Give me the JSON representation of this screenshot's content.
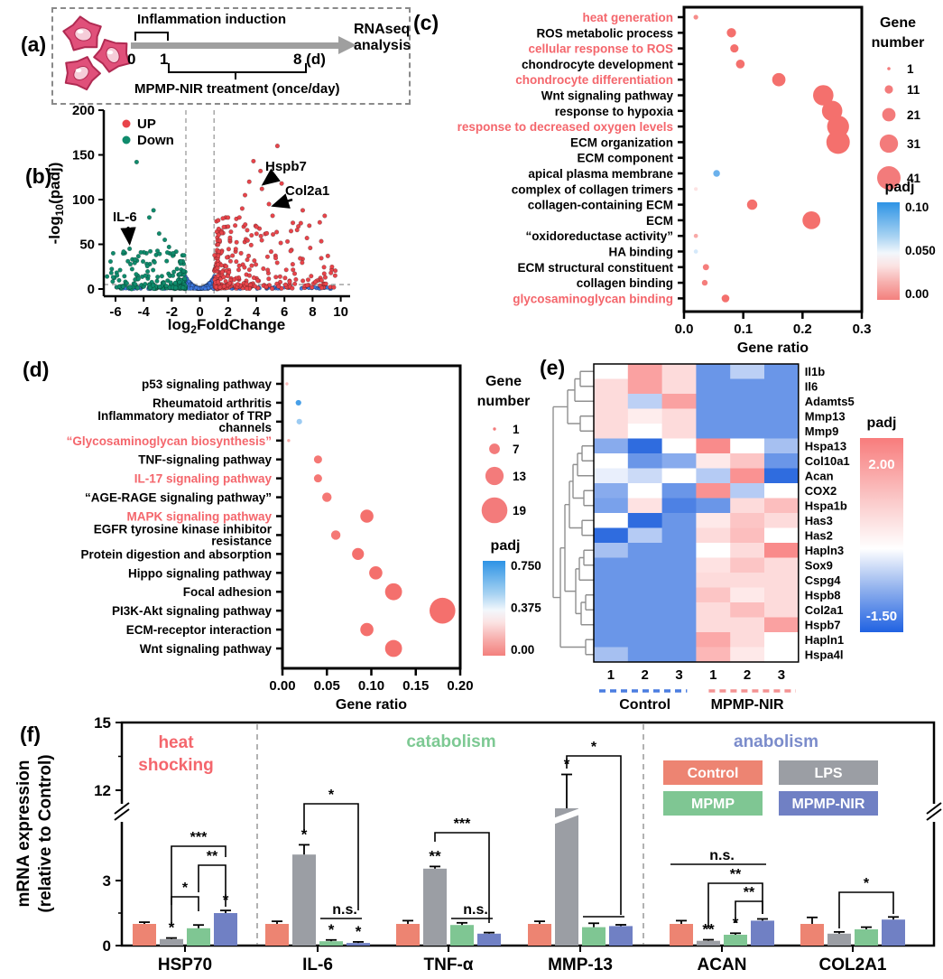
{
  "panels": {
    "a": "(a)",
    "b": "(b)",
    "c": "(c)",
    "d": "(d)",
    "e": "(e)",
    "f": "(f)"
  },
  "panel_a": {
    "induction": "Inflammation induction",
    "t0": "0",
    "t1": "1",
    "t8": "8 (d)",
    "treatment": "MPMP-NIR treatment (once/day)",
    "rnaseq_line1": "RNAseq",
    "rnaseq_line2": "analysis"
  },
  "chart_data": [
    {
      "id": "volcano",
      "type": "scatter",
      "panel": "b",
      "xlabel_parts": [
        "log",
        "2",
        "FoldChange"
      ],
      "ylabel_parts": [
        "-log",
        "10",
        "(padj)"
      ],
      "xlim": [
        -7,
        10.6
      ],
      "ylim": [
        0,
        207
      ],
      "xticks": [
        -6,
        -4,
        -2,
        0,
        2,
        4,
        6,
        8,
        10
      ],
      "yticks": [
        0,
        50,
        100,
        150,
        200
      ],
      "legend": [
        {
          "label": "UP",
          "color": "#e8444a"
        },
        {
          "label": "Down",
          "color": "#0f8b6c"
        }
      ],
      "colors": {
        "up": "#e8444a",
        "down": "#0f8b6c",
        "ns": "#3f79e1"
      },
      "threshold_x": [
        -1,
        1
      ],
      "threshold_y": 5,
      "counts": {
        "up": 300,
        "down": 210,
        "ns_dip": 420,
        "ns_band": 130
      },
      "notable_up": [
        [
          5.5,
          160
        ],
        [
          3.8,
          143
        ],
        [
          4.3,
          132
        ],
        [
          3.5,
          120
        ],
        [
          5.8,
          118
        ],
        [
          4.4,
          112
        ],
        [
          3.2,
          105
        ],
        [
          4.9,
          95
        ],
        [
          3.0,
          90
        ],
        [
          7.3,
          88
        ],
        [
          2.8,
          80
        ],
        [
          6.6,
          74
        ],
        [
          6.9,
          66
        ],
        [
          7.6,
          57
        ],
        [
          9.3,
          18
        ],
        [
          8.9,
          13
        ],
        [
          9.6,
          15
        ],
        [
          8.2,
          8
        ],
        [
          2.5,
          71
        ],
        [
          2.2,
          64
        ]
      ],
      "notable_down": [
        [
          -4.5,
          142
        ],
        [
          -3.3,
          88
        ],
        [
          -3.6,
          80
        ],
        [
          -2.9,
          62
        ],
        [
          -2.5,
          55
        ],
        [
          -5.0,
          45
        ],
        [
          -4.2,
          41
        ],
        [
          -4.6,
          33
        ],
        [
          -6.3,
          18
        ],
        [
          -6.6,
          14
        ],
        [
          -2.2,
          47
        ],
        [
          -1.9,
          40
        ]
      ],
      "annotations": [
        {
          "text": "Hspb7",
          "x": 4.3,
          "y": 112
        },
        {
          "text": "Col2a1",
          "x": 5.0,
          "y": 88
        },
        {
          "text": "IL-6",
          "x": -5.0,
          "y": 45
        }
      ]
    },
    {
      "id": "go",
      "type": "dotplot",
      "panel": "c",
      "xlabel": "Gene ratio",
      "xlim": [
        0,
        0.3
      ],
      "xtick_labels": [
        "0.0",
        "0.1",
        "0.2",
        "0.3"
      ],
      "xtick_values": [
        0,
        0.1,
        0.2,
        0.3
      ],
      "size_legend": {
        "title_line1": "Gene",
        "title_line2": "number",
        "values": [
          1,
          11,
          21,
          31,
          41
        ]
      },
      "color_legend": {
        "title": "padj",
        "labels": [
          "0.10",
          "0.050",
          "0.00"
        ],
        "max": 0.1
      },
      "highlight_color": "#f4666c",
      "rows": [
        {
          "label": [
            "heat generation"
          ],
          "highlight": true,
          "ratio": 0.02,
          "n": 4,
          "padj": 0.01
        },
        {
          "label": [
            "ROS metabolic process"
          ],
          "highlight": false,
          "ratio": 0.08,
          "n": 13,
          "padj": 0.0
        },
        {
          "label": [
            "cellular response to ROS"
          ],
          "highlight": true,
          "ratio": 0.085,
          "n": 11,
          "padj": 0.0
        },
        {
          "label": [
            "chondrocyte development"
          ],
          "highlight": false,
          "ratio": 0.095,
          "n": 12,
          "padj": 0.0
        },
        {
          "label": [
            "chondrocyte differentiation"
          ],
          "highlight": true,
          "ratio": 0.16,
          "n": 21,
          "padj": 0.0
        },
        {
          "label": [
            "Wnt signaling pathway"
          ],
          "highlight": false,
          "ratio": 0.235,
          "n": 35,
          "padj": 0.0
        },
        {
          "label": [
            "response to hypoxia"
          ],
          "highlight": false,
          "ratio": 0.25,
          "n": 35,
          "padj": 0.0
        },
        {
          "label": [
            "response to decreased oxygen levels"
          ],
          "highlight": true,
          "ratio": 0.26,
          "n": 38,
          "padj": 0.0
        },
        {
          "label": [
            "ECM organization"
          ],
          "highlight": false,
          "ratio": 0.26,
          "n": 41,
          "padj": 0.0
        },
        {
          "label": [
            "ECM component"
          ],
          "highlight": false,
          "ratio": 0.025,
          "n": 3,
          "padj": 0.05
        },
        {
          "label": [
            "apical plasma membrane"
          ],
          "highlight": false,
          "ratio": 0.055,
          "n": 8,
          "padj": 0.085
        },
        {
          "label": [
            "complex of collagen trimers"
          ],
          "highlight": false,
          "ratio": 0.02,
          "n": 2,
          "padj": 0.04
        },
        {
          "label": [
            "collagen-containing ECM"
          ],
          "highlight": false,
          "ratio": 0.115,
          "n": 15,
          "padj": 0.0
        },
        {
          "label": [
            "ECM"
          ],
          "highlight": false,
          "ratio": 0.215,
          "n": 30,
          "padj": 0.0
        },
        {
          "label": [
            "“oxidoreductase activity”"
          ],
          "highlight": false,
          "ratio": 0.02,
          "n": 3,
          "padj": 0.02
        },
        {
          "label": [
            "HA binding"
          ],
          "highlight": false,
          "ratio": 0.02,
          "n": 3,
          "padj": 0.06
        },
        {
          "label": [
            "ECM structural constituent"
          ],
          "highlight": false,
          "ratio": 0.037,
          "n": 7,
          "padj": 0.005
        },
        {
          "label": [
            "collagen binding"
          ],
          "highlight": false,
          "ratio": 0.035,
          "n": 6,
          "padj": 0.005
        },
        {
          "label": [
            "glycosaminoglycan binding"
          ],
          "highlight": true,
          "ratio": 0.07,
          "n": 10,
          "padj": 0.0
        }
      ]
    },
    {
      "id": "kegg",
      "type": "dotplot",
      "panel": "d",
      "xlabel": "Gene ratio",
      "xlim": [
        0,
        0.2
      ],
      "xtick_labels": [
        "0.00",
        "0.05",
        "0.10",
        "0.15",
        "0.20"
      ],
      "xtick_values": [
        0,
        0.05,
        0.1,
        0.15,
        0.2
      ],
      "size_legend": {
        "title_line1": "Gene",
        "title_line2": "number",
        "values": [
          1,
          7,
          13,
          19
        ]
      },
      "color_legend": {
        "title": "padj",
        "labels": [
          "0.750",
          "0.375",
          "0.00"
        ],
        "max": 0.75
      },
      "highlight_color": "#f4666c",
      "rows": [
        {
          "label": [
            "p53 signaling pathway"
          ],
          "highlight": false,
          "ratio": 0.005,
          "n": 1,
          "padj": 0.2
        },
        {
          "label": [
            "Rheumatoid arthritis"
          ],
          "highlight": false,
          "ratio": 0.018,
          "n": 3,
          "padj": 0.7
        },
        {
          "label": [
            "Inflammatory mediator of TRP",
            "channels"
          ],
          "highlight": false,
          "ratio": 0.019,
          "n": 3,
          "padj": 0.55
        },
        {
          "label": [
            "“Glycosaminoglycan biosynthesis”"
          ],
          "highlight": true,
          "ratio": 0.007,
          "n": 1,
          "padj": 0.15
        },
        {
          "label": [
            "TNF-signaling pathway"
          ],
          "highlight": false,
          "ratio": 0.04,
          "n": 5,
          "padj": 0.02
        },
        {
          "label": [
            "IL-17 signaling pathway"
          ],
          "highlight": true,
          "ratio": 0.04,
          "n": 5,
          "padj": 0.02
        },
        {
          "label": [
            "“AGE-RAGE signaling pathway”"
          ],
          "highlight": false,
          "ratio": 0.05,
          "n": 6,
          "padj": 0.02
        },
        {
          "label": [
            "MAPK signaling pathway"
          ],
          "highlight": true,
          "ratio": 0.095,
          "n": 9,
          "padj": 0.0
        },
        {
          "label": [
            "EGFR tyrosine kinase inhibitor",
            "resistance"
          ],
          "highlight": false,
          "ratio": 0.06,
          "n": 6,
          "padj": 0.02
        },
        {
          "label": [
            "Protein digestion and absorption"
          ],
          "highlight": false,
          "ratio": 0.085,
          "n": 8,
          "padj": 0.0
        },
        {
          "label": [
            "Hippo signaling pathway"
          ],
          "highlight": false,
          "ratio": 0.105,
          "n": 9,
          "padj": 0.0
        },
        {
          "label": [
            "Focal adhesion"
          ],
          "highlight": false,
          "ratio": 0.125,
          "n": 12,
          "padj": 0.0
        },
        {
          "label": [
            "PI3K-Akt signaling pathway"
          ],
          "highlight": false,
          "ratio": 0.18,
          "n": 19,
          "padj": 0.0
        },
        {
          "label": [
            "ECM-receptor interaction"
          ],
          "highlight": false,
          "ratio": 0.095,
          "n": 9,
          "padj": 0.0
        },
        {
          "label": [
            "Wnt signaling pathway"
          ],
          "highlight": false,
          "ratio": 0.125,
          "n": 12,
          "padj": 0.0
        }
      ]
    },
    {
      "id": "heatmap",
      "type": "heatmap",
      "panel": "e",
      "columns": [
        "1",
        "2",
        "3",
        "1",
        "2",
        "3"
      ],
      "group_labels": [
        "Control",
        "MPMP-NIR"
      ],
      "group_line_colors": [
        "#4a7de0",
        "#f39292"
      ],
      "colorbar": {
        "title": "padj",
        "max_label": "2.00",
        "min_label": "-1.50",
        "max": 2.0,
        "min": -1.5
      },
      "genes": [
        "Il1b",
        "Il6",
        "Adamts5",
        "Mmp13",
        "Mmp9",
        "Hspa13",
        "Col10a1",
        "Acan",
        "COX2",
        "Hspa1b",
        "Has3",
        "Has2",
        "Hapln3",
        "Sox9",
        "Cspg4",
        "Hspb8",
        "Col2a1",
        "Hspb7",
        "Hapln1",
        "Hspa4l"
      ],
      "values": [
        [
          0,
          1.3,
          0.5,
          -1.0,
          -0.45,
          -1.0
        ],
        [
          0.5,
          1.3,
          0.5,
          -1.0,
          -1.0,
          -1.0
        ],
        [
          0.5,
          -0.45,
          1.3,
          -1.0,
          -1.0,
          -1.0
        ],
        [
          0.5,
          0.25,
          0.5,
          -1.0,
          -1.0,
          -1.0
        ],
        [
          0.5,
          0,
          0.5,
          -1.0,
          -1.0,
          -1.0
        ],
        [
          -0.8,
          -1.4,
          0,
          1.6,
          0,
          -0.6
        ],
        [
          0,
          -1.0,
          -0.8,
          0.3,
          0.8,
          -1.0
        ],
        [
          -0.15,
          -0.35,
          0,
          -0.5,
          1.5,
          -1.4
        ],
        [
          -0.8,
          0,
          -1.0,
          1.5,
          -0.5,
          0
        ],
        [
          -0.9,
          0.4,
          -1.2,
          -1.0,
          0.5,
          0.9
        ],
        [
          0,
          -1.4,
          -1.0,
          0.3,
          0.8,
          0.5
        ],
        [
          -1.4,
          -0.5,
          -1.0,
          0.5,
          0.9,
          0
        ],
        [
          -0.6,
          -1.0,
          -1.0,
          0,
          0.5,
          1.6
        ],
        [
          -1.0,
          -1.0,
          -1.0,
          0.4,
          0.8,
          0.5
        ],
        [
          -1.0,
          -1.0,
          -1.0,
          0.5,
          0.5,
          0.5
        ],
        [
          -1.0,
          -1.0,
          -1.0,
          0.8,
          0.3,
          0.5
        ],
        [
          -1.0,
          -1.0,
          -1.0,
          0.5,
          0.9,
          0.5
        ],
        [
          -1.0,
          -1.0,
          -1.0,
          0.5,
          0.5,
          1.3
        ],
        [
          -1.0,
          -1.0,
          -1.0,
          1.2,
          0.5,
          0
        ],
        [
          -0.6,
          -1.0,
          -1.0,
          1.0,
          0.3,
          0
        ]
      ]
    },
    {
      "id": "bars",
      "type": "bar",
      "panel": "f",
      "ylabel_line1": "mRNA expression",
      "ylabel_line2": "(relative to Control)",
      "ytick_labels": [
        "0",
        "3",
        "12",
        "15"
      ],
      "ytick_values": [
        0,
        3,
        12,
        15
      ],
      "sections": [
        {
          "label_lines": [
            "heat",
            "shocking"
          ],
          "color": "#f4666c"
        },
        {
          "label_lines": [
            "catabolism"
          ],
          "color": "#7dc993"
        },
        {
          "label_lines": [
            "anabolism"
          ],
          "color": "#7b8ccb"
        }
      ],
      "series": [
        "Control",
        "LPS",
        "MPMP",
        "MPMP-NIR"
      ],
      "series_colors": [
        "#ed8472",
        "#9b9ea4",
        "#7fc693",
        "#7080c4"
      ],
      "groups": [
        {
          "name": "HSP70",
          "values": [
            1.0,
            0.3,
            0.8,
            1.5
          ],
          "errors": [
            0.08,
            0.05,
            0.15,
            0.12
          ],
          "stars": [
            "",
            "*",
            "",
            "*"
          ]
        },
        {
          "name": "IL-6",
          "values": [
            1.0,
            4.2,
            0.2,
            0.12
          ],
          "errors": [
            0.12,
            0.45,
            0.06,
            0.05
          ],
          "stars": [
            "",
            "*",
            "*",
            "*"
          ]
        },
        {
          "name": "TNF-α",
          "values": [
            1.0,
            3.55,
            0.95,
            0.55
          ],
          "errors": [
            0.15,
            0.1,
            0.1,
            0.05
          ],
          "stars": [
            "",
            "**",
            "",
            ""
          ]
        },
        {
          "name": "MMP-13",
          "values": [
            1.0,
            11.2,
            0.85,
            0.9
          ],
          "errors": [
            0.12,
            1.5,
            0.18,
            0.06
          ],
          "stars": [
            "",
            "*",
            "",
            ""
          ]
        },
        {
          "name": "ACAN",
          "values": [
            1.0,
            0.22,
            0.5,
            1.15
          ],
          "errors": [
            0.15,
            0.05,
            0.07,
            0.08
          ],
          "stars": [
            "",
            "**",
            "*",
            ""
          ]
        },
        {
          "name": "COL2A1",
          "values": [
            1.0,
            0.55,
            0.75,
            1.2
          ],
          "errors": [
            0.3,
            0.08,
            0.1,
            0.12
          ],
          "stars": [
            "",
            "",
            "",
            ""
          ]
        }
      ],
      "comparisons": [
        {
          "group": 0,
          "a": 1,
          "b": 3,
          "label": "***",
          "y": 157,
          "da": 65,
          "db": 12
        },
        {
          "group": 0,
          "a": 2,
          "b": 3,
          "label": "**",
          "y": 178,
          "da": 30,
          "db": 46
        },
        {
          "group": 0,
          "a": 1,
          "b": 2,
          "label": "*",
          "y": 213,
          "da": 30,
          "db": 16
        },
        {
          "group": 1,
          "a": 1,
          "b": 3,
          "label": "*",
          "y": 110,
          "da": 32,
          "db": 118
        },
        {
          "group": 1,
          "a": 2,
          "b": 3,
          "label": "n.s.",
          "y": 237,
          "da": 0,
          "db": 0
        },
        {
          "group": 2,
          "a": 1,
          "b": 3,
          "label": "***",
          "y": 142,
          "da": 10,
          "db": 100
        },
        {
          "group": 2,
          "a": 2,
          "b": 3,
          "label": "n.s.",
          "y": 237,
          "da": 0,
          "db": 0
        },
        {
          "group": 3,
          "a": 1,
          "b": 3,
          "label": "*",
          "y": 57,
          "da": 14,
          "db": 176
        },
        {
          "group": 3,
          "a": 2,
          "b": 3,
          "label": "",
          "y": 235,
          "da": 0,
          "db": 0
        },
        {
          "group": 4,
          "a": 0,
          "b": 3,
          "label": "n.s.",
          "y": 177,
          "da": 0,
          "db": 0
        },
        {
          "group": 4,
          "a": 1,
          "b": 3,
          "label": "**",
          "y": 198,
          "da": 50,
          "db": 34
        },
        {
          "group": 4,
          "a": 2,
          "b": 3,
          "label": "**",
          "y": 218,
          "da": 24,
          "db": 14
        },
        {
          "group": 5,
          "a": 1,
          "b": 3,
          "label": "*",
          "y": 208,
          "da": 40,
          "db": 24
        }
      ]
    }
  ]
}
